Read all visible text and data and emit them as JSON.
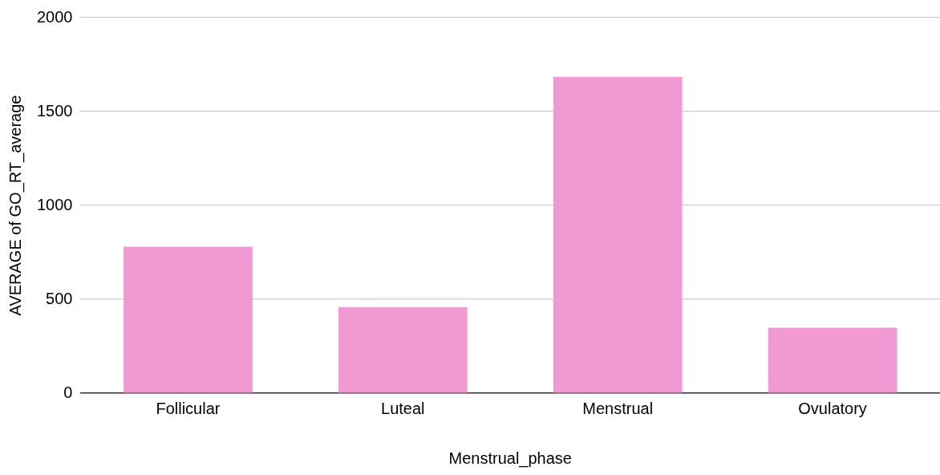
{
  "chart_data": {
    "type": "bar",
    "xlabel": "Menstrual_phase",
    "ylabel": "AVERAGE of GO_RT_average",
    "categories": [
      "Follicular",
      "Luteal",
      "Menstrual",
      "Ovulatory"
    ],
    "values": [
      780,
      458,
      1685,
      348
    ],
    "color": "#f199d2",
    "ylim": [
      0,
      2000
    ],
    "yticks": [
      0,
      500,
      1000,
      1500,
      2000
    ],
    "grid": "y",
    "legend": false
  }
}
